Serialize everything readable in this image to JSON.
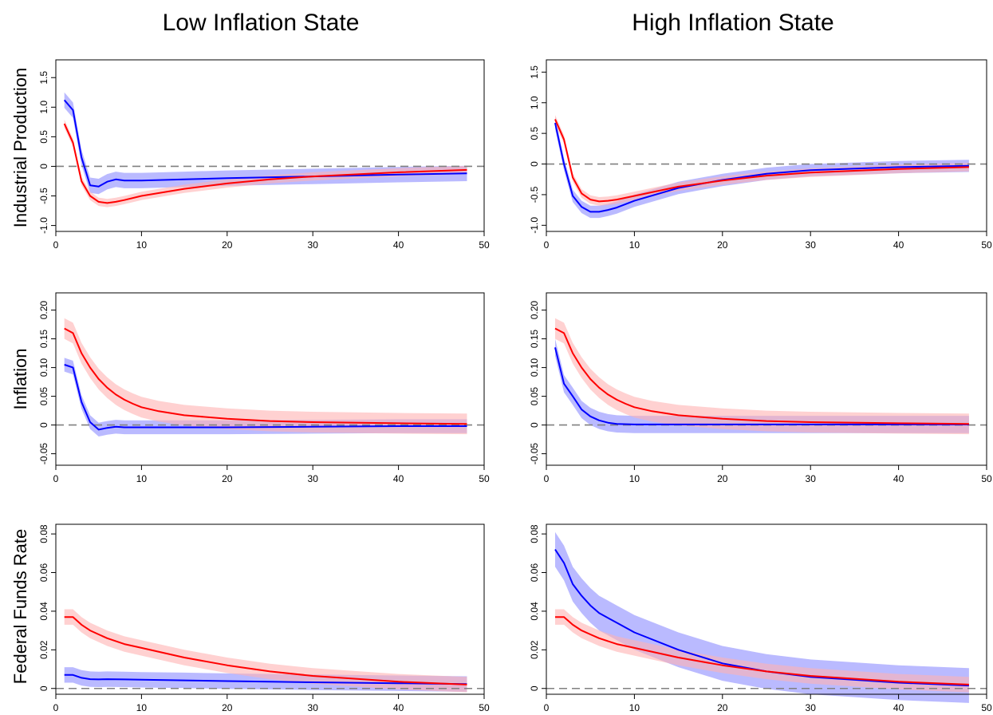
{
  "columns": [
    "Low Inflation State",
    "High Inflation State"
  ],
  "rows": [
    "Industrial Production",
    "Inflation",
    "Federal Funds Rate"
  ],
  "colors": {
    "blue": "#0000ff",
    "red": "#ff0000",
    "blue_band": "#8c8cff",
    "red_band": "#ffb3b3",
    "zero_line": "#808080",
    "axis": "#000000"
  },
  "chart_data": [
    {
      "type": "line",
      "row": 0,
      "col": 0,
      "xlim": [
        0,
        50
      ],
      "ylim": [
        -1.1,
        1.8
      ],
      "x_ticks": [
        0,
        10,
        20,
        30,
        40,
        50
      ],
      "y_ticks": [
        -1.0,
        -0.5,
        0,
        0.5,
        1.0,
        1.5
      ],
      "y_tick_labels": [
        "-1.0",
        "-0.5",
        "0",
        "0.5",
        "1.0",
        "1.5"
      ],
      "zero_line": true,
      "series": [
        {
          "color": "blue",
          "x": [
            1,
            2,
            3,
            4,
            5,
            6,
            7,
            8,
            10,
            15,
            20,
            30,
            40,
            48
          ],
          "y": [
            1.12,
            0.95,
            0.15,
            -0.32,
            -0.34,
            -0.26,
            -0.22,
            -0.24,
            -0.24,
            -0.22,
            -0.2,
            -0.17,
            -0.14,
            -0.12
          ],
          "band": 0.13
        },
        {
          "color": "red",
          "x": [
            1,
            2,
            3,
            4,
            5,
            6,
            7,
            8,
            10,
            15,
            20,
            25,
            30,
            40,
            48
          ],
          "y": [
            0.72,
            0.4,
            -0.25,
            -0.5,
            -0.6,
            -0.62,
            -0.6,
            -0.57,
            -0.5,
            -0.38,
            -0.29,
            -0.22,
            -0.17,
            -0.1,
            -0.06
          ],
          "band": 0.07
        }
      ]
    },
    {
      "type": "line",
      "row": 0,
      "col": 1,
      "xlim": [
        0,
        50
      ],
      "ylim": [
        -1.1,
        1.7
      ],
      "x_ticks": [
        0,
        10,
        20,
        30,
        40,
        50
      ],
      "y_ticks": [
        -1.0,
        -0.5,
        0,
        0.5,
        1.0,
        1.5
      ],
      "y_tick_labels": [
        "-1.0",
        "-0.5",
        "0",
        "0.5",
        "1.0",
        "1.5"
      ],
      "zero_line": true,
      "series": [
        {
          "color": "blue",
          "x": [
            1,
            2,
            3,
            4,
            5,
            6,
            7,
            8,
            10,
            15,
            20,
            25,
            30,
            40,
            48
          ],
          "y": [
            0.67,
            0.0,
            -0.52,
            -0.7,
            -0.78,
            -0.78,
            -0.75,
            -0.71,
            -0.6,
            -0.39,
            -0.26,
            -0.16,
            -0.1,
            -0.05,
            -0.03
          ],
          "band": 0.1
        },
        {
          "color": "red",
          "x": [
            1,
            2,
            3,
            4,
            5,
            6,
            7,
            8,
            10,
            15,
            20,
            25,
            30,
            40,
            48
          ],
          "y": [
            0.73,
            0.4,
            -0.22,
            -0.48,
            -0.58,
            -0.61,
            -0.6,
            -0.58,
            -0.52,
            -0.37,
            -0.27,
            -0.19,
            -0.14,
            -0.08,
            -0.05
          ],
          "band": 0.07
        }
      ]
    },
    {
      "type": "line",
      "row": 1,
      "col": 0,
      "xlim": [
        0,
        50
      ],
      "ylim": [
        -0.07,
        0.23
      ],
      "x_ticks": [
        0,
        10,
        20,
        30,
        40,
        50
      ],
      "y_ticks": [
        -0.05,
        0,
        0.05,
        0.1,
        0.15,
        0.2
      ],
      "y_tick_labels": [
        "-0.05",
        "0",
        "0.05",
        "0.10",
        "0.15",
        "0.20"
      ],
      "zero_line": true,
      "series": [
        {
          "color": "blue",
          "x": [
            1,
            2,
            3,
            4,
            5,
            6,
            7,
            8,
            10,
            15,
            20,
            30,
            40,
            48
          ],
          "y": [
            0.105,
            0.1,
            0.04,
            0.005,
            -0.008,
            -0.005,
            -0.003,
            -0.004,
            -0.004,
            -0.004,
            -0.004,
            -0.003,
            -0.002,
            -0.002
          ],
          "band": 0.012
        },
        {
          "color": "red",
          "x": [
            1,
            2,
            3,
            4,
            5,
            6,
            7,
            8,
            9,
            10,
            12,
            15,
            20,
            25,
            30,
            40,
            48
          ],
          "y": [
            0.168,
            0.16,
            0.125,
            0.1,
            0.08,
            0.065,
            0.053,
            0.044,
            0.037,
            0.031,
            0.024,
            0.017,
            0.011,
            0.007,
            0.005,
            0.003,
            0.002
          ],
          "band": 0.018
        }
      ]
    },
    {
      "type": "line",
      "row": 1,
      "col": 1,
      "xlim": [
        0,
        50
      ],
      "ylim": [
        -0.07,
        0.23
      ],
      "x_ticks": [
        0,
        10,
        20,
        30,
        40,
        50
      ],
      "y_ticks": [
        -0.05,
        0,
        0.05,
        0.1,
        0.15,
        0.2
      ],
      "y_tick_labels": [
        "-0.05",
        "0",
        "0.05",
        "0.10",
        "0.15",
        "0.20"
      ],
      "zero_line": true,
      "series": [
        {
          "color": "blue",
          "x": [
            1,
            2,
            3,
            4,
            5,
            6,
            7,
            8,
            10,
            15,
            20,
            30,
            40,
            48
          ],
          "y": [
            0.135,
            0.072,
            0.05,
            0.027,
            0.015,
            0.008,
            0.004,
            0.002,
            0.001,
            0.001,
            0.001,
            0.001,
            0.001,
            0.001
          ],
          "band": 0.015
        },
        {
          "color": "red",
          "x": [
            1,
            2,
            3,
            4,
            5,
            6,
            7,
            8,
            9,
            10,
            12,
            15,
            20,
            25,
            30,
            40,
            48
          ],
          "y": [
            0.168,
            0.16,
            0.125,
            0.1,
            0.08,
            0.065,
            0.053,
            0.044,
            0.037,
            0.031,
            0.024,
            0.017,
            0.011,
            0.007,
            0.005,
            0.003,
            0.002
          ],
          "band": 0.018
        }
      ]
    },
    {
      "type": "line",
      "row": 2,
      "col": 0,
      "xlim": [
        0,
        50
      ],
      "ylim": [
        -0.003,
        0.085
      ],
      "x_ticks": [
        0,
        10,
        20,
        30,
        40,
        50
      ],
      "y_ticks": [
        0,
        0.02,
        0.04,
        0.06,
        0.08
      ],
      "y_tick_labels": [
        "0",
        "0.02",
        "0.04",
        "0.06",
        "0.08"
      ],
      "zero_line": true,
      "series": [
        {
          "color": "blue",
          "x": [
            1,
            2,
            3,
            4,
            5,
            6,
            8,
            10,
            15,
            20,
            30,
            40,
            48
          ],
          "y": [
            0.007,
            0.007,
            0.0055,
            0.0048,
            0.0047,
            0.0048,
            0.0047,
            0.0045,
            0.0042,
            0.0038,
            0.0032,
            0.0027,
            0.0023
          ],
          "band": 0.004
        },
        {
          "color": "red",
          "x": [
            1,
            2,
            3,
            4,
            5,
            6,
            8,
            10,
            15,
            20,
            25,
            30,
            40,
            48
          ],
          "y": [
            0.037,
            0.037,
            0.033,
            0.03,
            0.028,
            0.026,
            0.023,
            0.021,
            0.016,
            0.012,
            0.0088,
            0.0065,
            0.0035,
            0.002
          ],
          "band": 0.004
        }
      ]
    },
    {
      "type": "line",
      "row": 2,
      "col": 1,
      "xlim": [
        0,
        50
      ],
      "ylim": [
        -0.003,
        0.085
      ],
      "x_ticks": [
        0,
        10,
        20,
        30,
        40,
        50
      ],
      "y_ticks": [
        0,
        0.02,
        0.04,
        0.06,
        0.08
      ],
      "y_tick_labels": [
        "0",
        "0.02",
        "0.04",
        "0.06",
        "0.08"
      ],
      "zero_line": true,
      "series": [
        {
          "color": "blue",
          "x": [
            1,
            2,
            3,
            4,
            5,
            6,
            8,
            10,
            15,
            20,
            25,
            30,
            40,
            48
          ],
          "y": [
            0.072,
            0.065,
            0.054,
            0.048,
            0.043,
            0.039,
            0.034,
            0.029,
            0.02,
            0.013,
            0.0088,
            0.006,
            0.003,
            0.0015
          ],
          "band": 0.009
        },
        {
          "color": "red",
          "x": [
            1,
            2,
            3,
            4,
            5,
            6,
            8,
            10,
            15,
            20,
            25,
            30,
            40,
            48
          ],
          "y": [
            0.037,
            0.037,
            0.033,
            0.03,
            0.028,
            0.026,
            0.023,
            0.021,
            0.016,
            0.012,
            0.0088,
            0.0065,
            0.0035,
            0.002
          ],
          "band": 0.004
        }
      ]
    }
  ]
}
